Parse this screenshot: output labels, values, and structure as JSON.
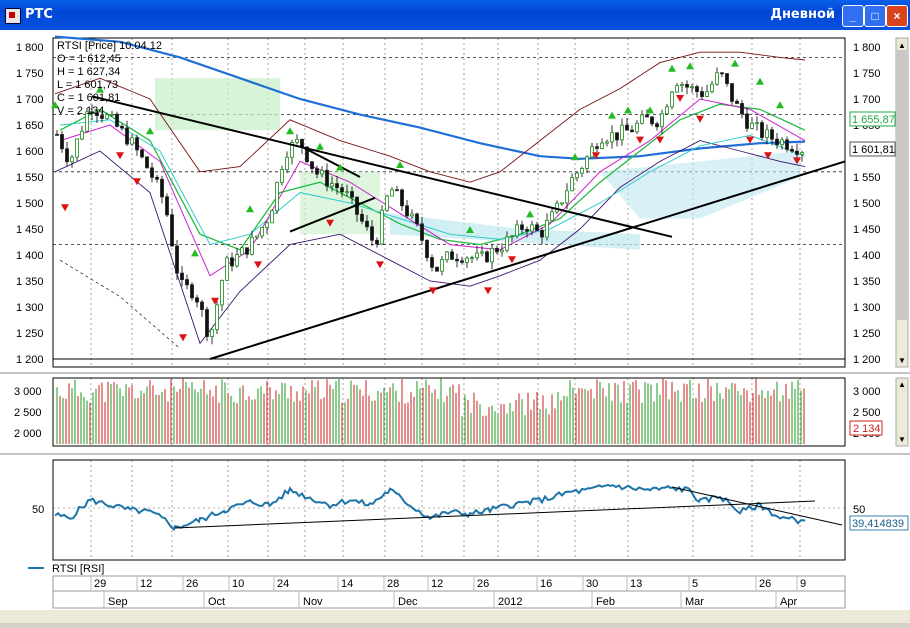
{
  "window": {
    "title": "РТС",
    "mode": "Дневной",
    "buttons": {
      "minimize": "_",
      "maximize": "□",
      "close": "×"
    }
  },
  "legend": {
    "symbol": "RTSI [Price] 10.04.12",
    "open": "O = 1 612,45",
    "high": "H = 1 627,34",
    "low": "L = 1 601,73",
    "close": "C = 1 601,81",
    "volume": "V = 2 134"
  },
  "price_axis": {
    "ticks": [
      "1 800",
      "1 750",
      "1 700",
      "1 650",
      "1 600",
      "1 550",
      "1 500",
      "1 450",
      "1 400",
      "1 350",
      "1 300",
      "1 250",
      "1 200"
    ],
    "label_green": "1 655,87",
    "label_current": "1 601,81"
  },
  "volume_axis": {
    "ticks": [
      "3 000",
      "2 500",
      "2 000"
    ],
    "label_current": "2 134"
  },
  "rsi": {
    "tick": "50",
    "right_tick": "50",
    "value": "39,414839",
    "legend": "RTSI [RSI]"
  },
  "date_axis": {
    "days": [
      "29",
      "12",
      "26",
      "10",
      "24",
      "14",
      "28",
      "12",
      "26",
      "16",
      "30",
      "13",
      "5",
      "26",
      "9"
    ],
    "months": [
      "Sep",
      "Oct",
      "Nov",
      "Dec",
      "2012",
      "Feb",
      "Mar",
      "Apr"
    ]
  },
  "colors": {
    "up": "#1a9a1a",
    "down": "#c81e1e",
    "ma_blue": "#1f6fd6",
    "rsi_line": "#1d74a8",
    "arrow_up": "#22bb22",
    "arrow_down": "#dd1111"
  }
}
